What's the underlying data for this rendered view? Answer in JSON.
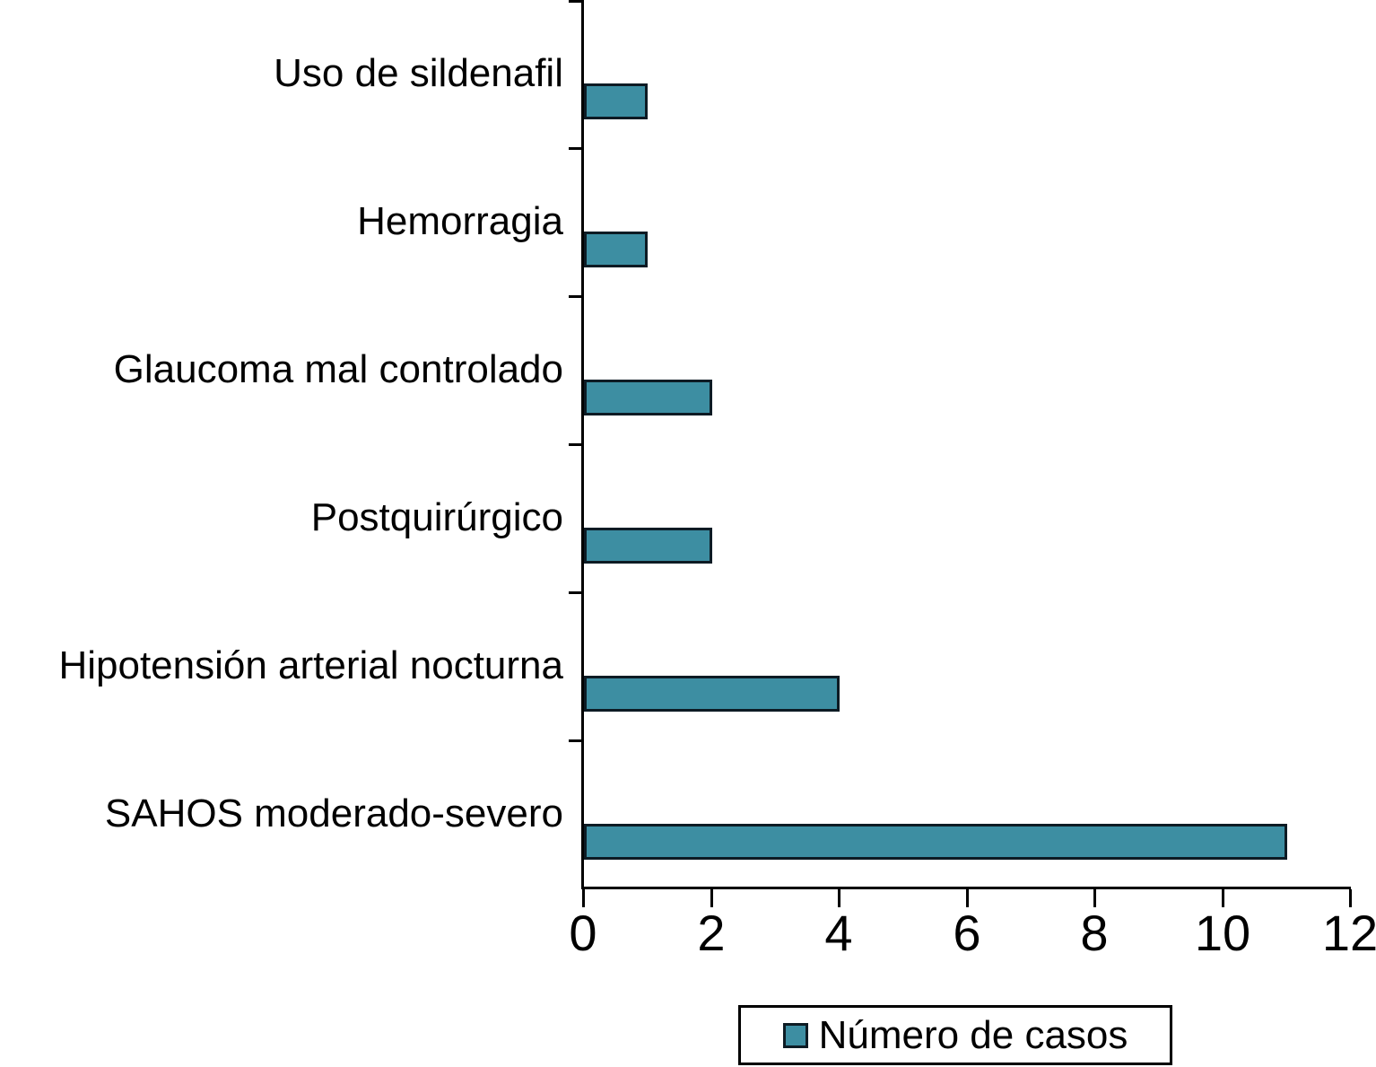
{
  "chart_data": {
    "type": "bar",
    "orientation": "horizontal",
    "title": "",
    "xlabel": "",
    "ylabel": "",
    "categories": [
      "Uso de sildenafil",
      "Hemorragia",
      "Glaucoma mal controlado",
      "Postquirúrgico",
      "Hipotensión arterial nocturna",
      "SAHOS moderado-severo"
    ],
    "series": [
      {
        "name": "Número de casos",
        "values": [
          1,
          1,
          2,
          2,
          4,
          11
        ]
      }
    ],
    "xlim": [
      0,
      12
    ],
    "x_ticks": [
      "0",
      "2",
      "4",
      "6",
      "8",
      "10",
      "12"
    ],
    "x_tick_values": [
      0,
      2,
      4,
      6,
      8,
      10,
      12
    ],
    "grid": false,
    "legend": {
      "position": "bottom",
      "label": "Número de casos"
    },
    "colors": {
      "bar_fill": "#3d8ea2",
      "bar_border": "#0d1b24",
      "axis": "#000000",
      "background": "#ffffff"
    }
  }
}
